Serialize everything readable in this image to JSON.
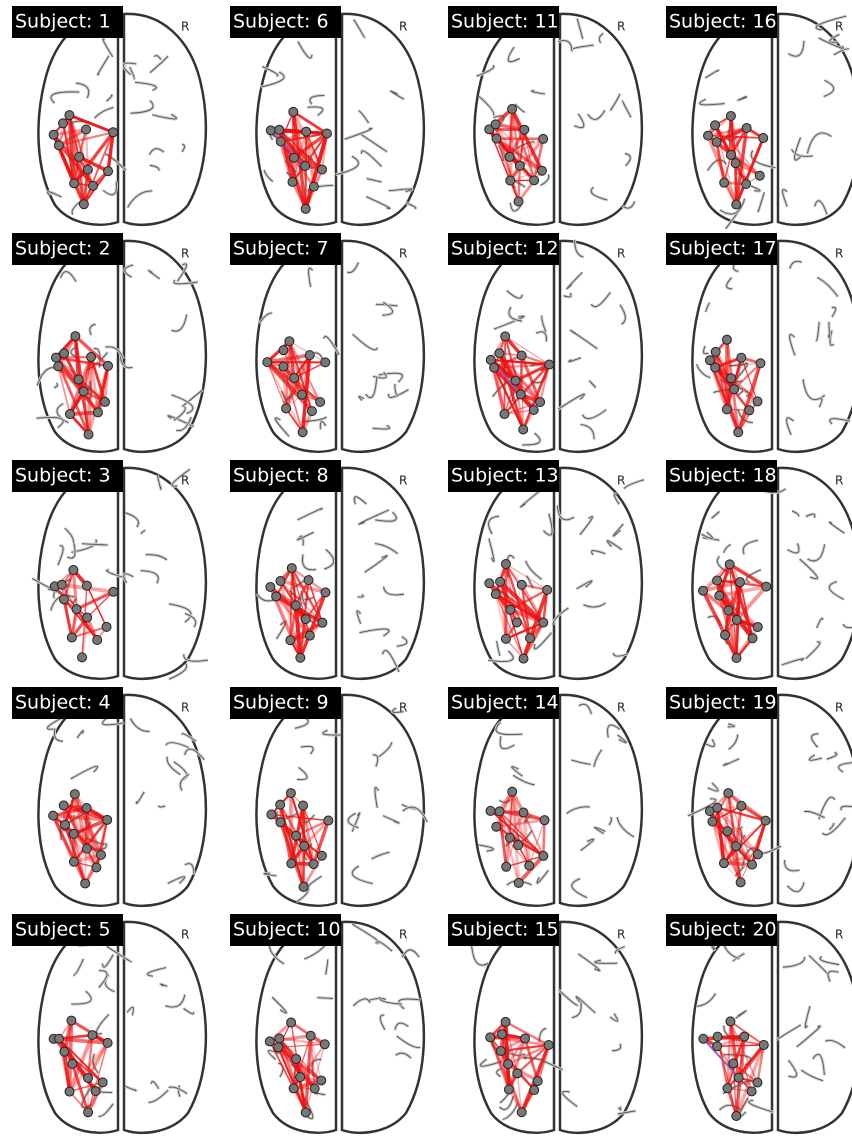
{
  "panels": [
    {
      "label": "Subject: 1",
      "side": "R"
    },
    {
      "label": "Subject: 2",
      "side": "R"
    },
    {
      "label": "Subject: 3",
      "side": "R"
    },
    {
      "label": "Subject: 4",
      "side": "R"
    },
    {
      "label": "Subject: 5",
      "side": "R"
    },
    {
      "label": "Subject: 6",
      "side": "R"
    },
    {
      "label": "Subject: 7",
      "side": "R"
    },
    {
      "label": "Subject: 8",
      "side": "R"
    },
    {
      "label": "Subject: 9",
      "side": "R"
    },
    {
      "label": "Subject: 10",
      "side": "R"
    },
    {
      "label": "Subject: 11",
      "side": "R"
    },
    {
      "label": "Subject: 12",
      "side": "R"
    },
    {
      "label": "Subject: 13",
      "side": "R"
    },
    {
      "label": "Subject: 14",
      "side": "R"
    },
    {
      "label": "Subject: 15",
      "side": "R"
    },
    {
      "label": "Subject: 16",
      "side": "R"
    },
    {
      "label": "Subject: 17",
      "side": "R"
    },
    {
      "label": "Subject: 18",
      "side": "R"
    },
    {
      "label": "Subject: 19",
      "side": "R"
    },
    {
      "label": "Subject: 20",
      "side": "R"
    }
  ]
}
